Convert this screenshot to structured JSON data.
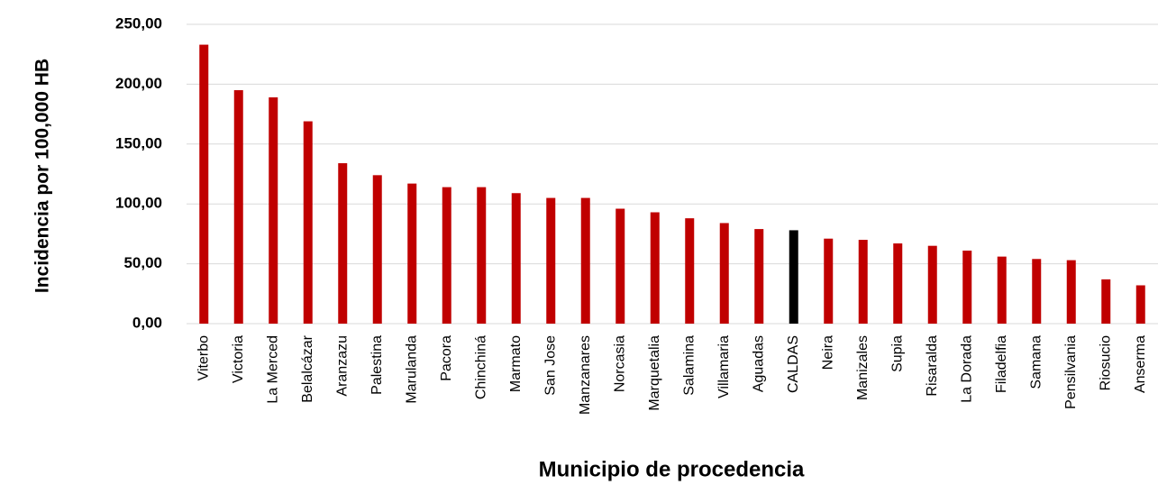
{
  "chart_data": {
    "type": "bar",
    "x_label": "Municipio de procedencia",
    "y_label": "Incidencia por 100,000 HB",
    "categories": [
      "Viterbo",
      "Victoria",
      "La Merced",
      "Belalcázar",
      "Aranzazu",
      "Palestina",
      "Marulanda",
      "Pacora",
      "Chinchiná",
      "Marmato",
      "San Jose",
      "Manzanares",
      "Norcasia",
      "Marquetalia",
      "Salamina",
      "Villamaria",
      "Aguadas",
      "CALDAS",
      "Neira",
      "Manizales",
      "Supia",
      "Risaralda",
      "La Dorada",
      "Filadelfia",
      "Samana",
      "Pensilvania",
      "Riosucio",
      "Anserma"
    ],
    "values": [
      233,
      195,
      189,
      169,
      134,
      124,
      117,
      114,
      114,
      109,
      105,
      105,
      96,
      93,
      88,
      84,
      79,
      78,
      71,
      70,
      67,
      65,
      61,
      56,
      54,
      53,
      37,
      32
    ],
    "colors": [
      "#c00000",
      "#c00000",
      "#c00000",
      "#c00000",
      "#c00000",
      "#c00000",
      "#c00000",
      "#c00000",
      "#c00000",
      "#c00000",
      "#c00000",
      "#c00000",
      "#c00000",
      "#c00000",
      "#c00000",
      "#c00000",
      "#c00000",
      "#000000",
      "#c00000",
      "#c00000",
      "#c00000",
      "#c00000",
      "#c00000",
      "#c00000",
      "#c00000",
      "#c00000",
      "#c00000",
      "#c00000"
    ],
    "ylim": [
      0,
      250
    ],
    "yticks": [
      {
        "value": 0,
        "label": "0,00"
      },
      {
        "value": 50,
        "label": "50,00"
      },
      {
        "value": 100,
        "label": "100,00"
      },
      {
        "value": 150,
        "label": "150,00"
      },
      {
        "value": 200,
        "label": "200,00"
      },
      {
        "value": 250,
        "label": "250,00"
      }
    ],
    "grid": true
  }
}
